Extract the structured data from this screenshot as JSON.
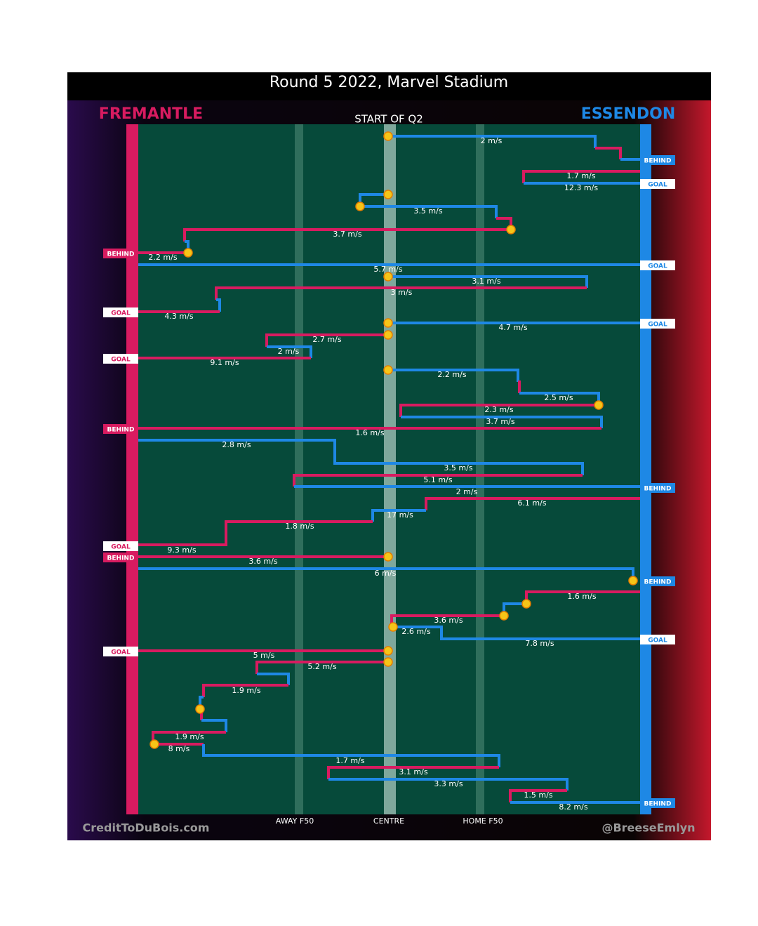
{
  "header": {
    "title": "Round 5 2022, Marvel Stadium",
    "left_team": "FREMANTLE",
    "right_team": "ESSENDON",
    "period": "START OF Q2"
  },
  "speeds": [
    "2 m/s",
    "1.7 m/s",
    "12.3 m/s",
    "3.5 m/s",
    "3.7 m/s",
    "2.2 m/s",
    "5.7 m/s",
    "3.1 m/s",
    "3 m/s",
    "4.3 m/s",
    "4.7 m/s",
    "2.7 m/s",
    "2 m/s",
    "9.1 m/s",
    "2.2 m/s",
    "2.5 m/s",
    "2.3 m/s",
    "3.7 m/s",
    "1.6 m/s",
    "2.8 m/s",
    "3.5 m/s",
    "5.1 m/s",
    "2 m/s",
    "6.1 m/s",
    "17 m/s",
    "1.8 m/s",
    "9.3 m/s",
    "3.6 m/s",
    "6 m/s",
    "1.6 m/s",
    "3.6 m/s",
    "2.6 m/s",
    "7.8 m/s",
    "5 m/s",
    "5.2 m/s",
    "1.9 m/s",
    "1.9 m/s",
    "8 m/s",
    "1.7 m/s",
    "3.1 m/s",
    "3.3 m/s",
    "1.5 m/s",
    "8.2 m/s"
  ],
  "results": [
    "BEHIND",
    "GOAL",
    "BEHIND",
    "GOAL",
    "GOAL",
    "GOAL",
    "GOAL",
    "BEHIND",
    "BEHIND",
    "GOAL",
    "BEHIND",
    "BEHIND",
    "GOAL",
    "GOAL",
    "BEHIND"
  ],
  "axis_labels": [
    "AWAY F50",
    "CENTRE",
    "HOME F50"
  ],
  "credits": {
    "left": "CreditToDuBois.com",
    "right": "@BreeseEmlyn"
  }
}
